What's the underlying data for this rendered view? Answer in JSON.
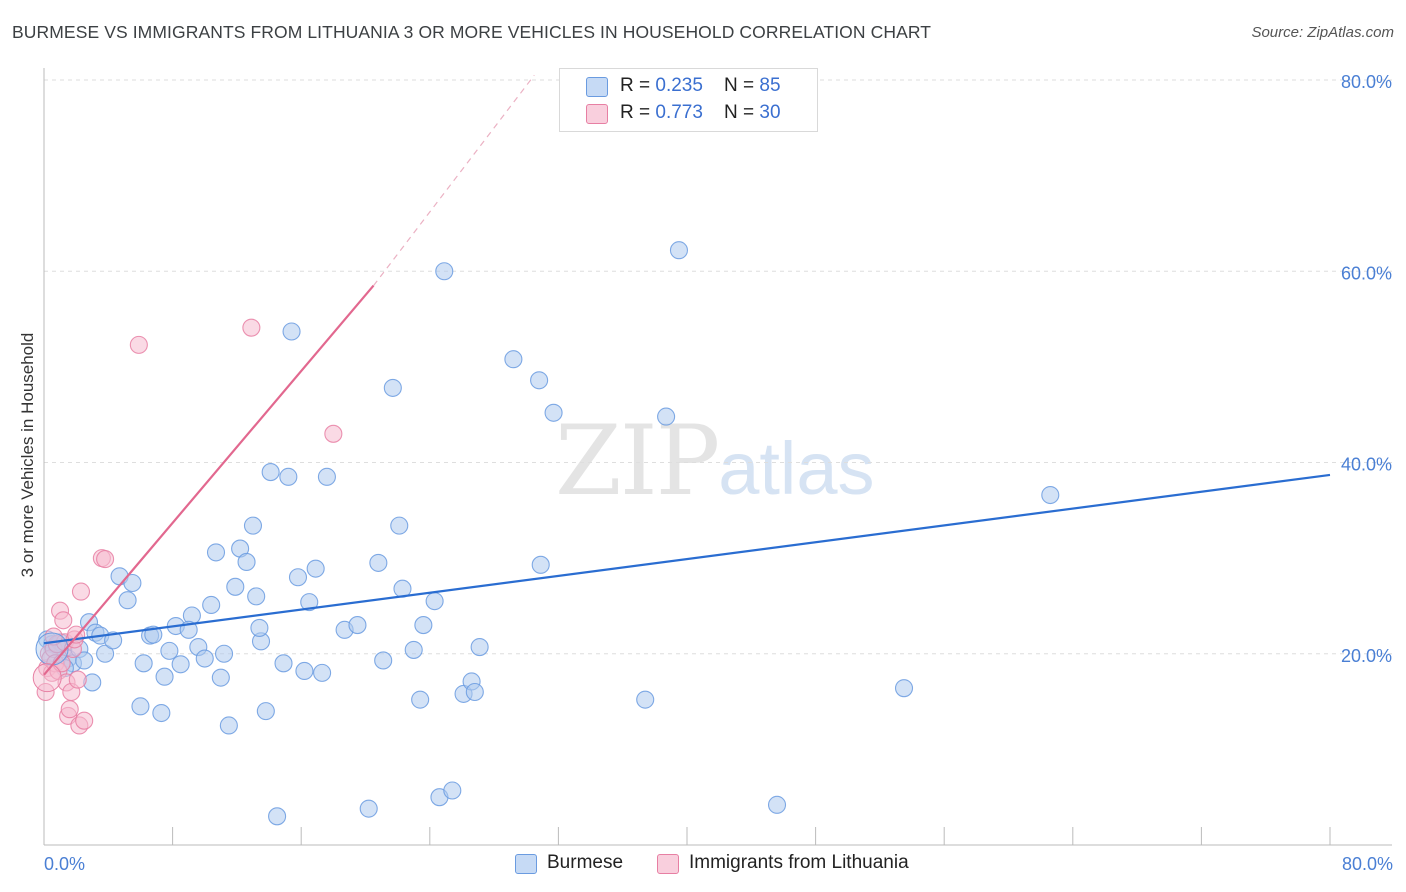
{
  "title": "BURMESE VS IMMIGRANTS FROM LITHUANIA 3 OR MORE VEHICLES IN HOUSEHOLD CORRELATION CHART",
  "source": "Source: ZipAtlas.com",
  "watermark": {
    "zip": "ZIP",
    "atlas": "atlas"
  },
  "legend": {
    "rows": [
      {
        "r_label": "R = ",
        "r_value": "0.235",
        "n_label": "N = ",
        "n_value": "85"
      },
      {
        "r_label": "R = ",
        "r_value": "0.773",
        "n_label": "N = ",
        "n_value": "30"
      }
    ]
  },
  "bottom_legend": [
    "Burmese",
    "Immigrants from Lithuania"
  ],
  "chart_data": {
    "type": "scatter",
    "title": "BURMESE VS IMMIGRANTS FROM LITHUANIA 3 OR MORE VEHICLES IN HOUSEHOLD CORRELATION CHART",
    "xlabel": "",
    "ylabel": "3 or more Vehicles in Household",
    "xlim": [
      0,
      80
    ],
    "ylim": [
      0,
      80
    ],
    "x_tick_labels": [
      "0.0%",
      "80.0%"
    ],
    "y_ticks": [
      20,
      40,
      60,
      80
    ],
    "y_tick_labels": [
      "20.0%",
      "40.0%",
      "60.0%",
      "80.0%"
    ],
    "grid": true,
    "series": [
      {
        "name": "Burmese",
        "color": "#6a9be0",
        "fill": "#aecbef",
        "R": 0.235,
        "N": 85,
        "trend": {
          "x": [
            0,
            80
          ],
          "y": [
            21.1,
            38.7
          ]
        },
        "points": [
          [
            0.2,
            21.5
          ],
          [
            0.5,
            21.0
          ],
          [
            0.8,
            20.8
          ],
          [
            1.0,
            21.2
          ],
          [
            1.2,
            20.5
          ],
          [
            1.5,
            19.5
          ],
          [
            1.8,
            19.0
          ],
          [
            2.2,
            20.5
          ],
          [
            2.5,
            19.3
          ],
          [
            2.8,
            23.3
          ],
          [
            3.2,
            22.2
          ],
          [
            3.5,
            21.9
          ],
          [
            3.8,
            20.0
          ],
          [
            4.3,
            21.4
          ],
          [
            4.7,
            28.1
          ],
          [
            5.2,
            25.6
          ],
          [
            5.5,
            27.4
          ],
          [
            6.2,
            19.0
          ],
          [
            6.6,
            21.9
          ],
          [
            6.8,
            22.0
          ],
          [
            7.3,
            13.8
          ],
          [
            7.5,
            17.6
          ],
          [
            7.8,
            20.3
          ],
          [
            8.2,
            22.9
          ],
          [
            8.5,
            18.9
          ],
          [
            9.2,
            24.0
          ],
          [
            9.6,
            20.7
          ],
          [
            10.0,
            19.5
          ],
          [
            10.4,
            25.1
          ],
          [
            10.7,
            30.6
          ],
          [
            11.2,
            20.0
          ],
          [
            11.5,
            12.5
          ],
          [
            11.9,
            27.0
          ],
          [
            12.2,
            31.0
          ],
          [
            12.6,
            29.6
          ],
          [
            13.0,
            33.4
          ],
          [
            13.2,
            26.0
          ],
          [
            13.5,
            21.3
          ],
          [
            13.8,
            14.0
          ],
          [
            14.1,
            39.0
          ],
          [
            14.5,
            3.0
          ],
          [
            14.9,
            19.0
          ],
          [
            15.2,
            38.5
          ],
          [
            15.4,
            53.7
          ],
          [
            15.8,
            28.0
          ],
          [
            16.2,
            18.2
          ],
          [
            16.5,
            25.4
          ],
          [
            16.9,
            28.9
          ],
          [
            17.3,
            18.0
          ],
          [
            17.6,
            38.5
          ],
          [
            18.7,
            22.5
          ],
          [
            19.5,
            23.0
          ],
          [
            20.2,
            3.8
          ],
          [
            20.8,
            29.5
          ],
          [
            21.1,
            19.3
          ],
          [
            21.7,
            47.8
          ],
          [
            22.1,
            33.4
          ],
          [
            22.3,
            26.8
          ],
          [
            23.0,
            20.4
          ],
          [
            23.4,
            15.2
          ],
          [
            23.6,
            23.0
          ],
          [
            24.3,
            25.5
          ],
          [
            24.6,
            5.0
          ],
          [
            24.9,
            60.0
          ],
          [
            25.4,
            5.7
          ],
          [
            26.1,
            15.8
          ],
          [
            26.6,
            17.1
          ],
          [
            26.8,
            16.0
          ],
          [
            27.1,
            20.7
          ],
          [
            29.2,
            50.8
          ],
          [
            30.8,
            48.6
          ],
          [
            30.9,
            29.3
          ],
          [
            31.7,
            45.2
          ],
          [
            37.4,
            15.2
          ],
          [
            38.7,
            44.8
          ],
          [
            39.5,
            62.2
          ],
          [
            45.6,
            4.2
          ],
          [
            53.5,
            16.4
          ],
          [
            62.6,
            36.6
          ],
          [
            1.3,
            18.5
          ],
          [
            3.0,
            17.0
          ],
          [
            6.0,
            14.5
          ],
          [
            9.0,
            22.5
          ],
          [
            11.0,
            17.5
          ],
          [
            13.4,
            22.7
          ]
        ]
      },
      {
        "name": "Immigrants from Lithuania",
        "color": "#e77fa3",
        "fill": "#f6bcd0",
        "R": 0.773,
        "N": 30,
        "trend": {
          "x": [
            0,
            20.5
          ],
          "y": [
            17.8,
            58.5
          ]
        },
        "trend_dashed": {
          "x": [
            20.5,
            30.5
          ],
          "y": [
            58.5,
            80.5
          ]
        },
        "points": [
          [
            0.1,
            16.0
          ],
          [
            0.2,
            18.5
          ],
          [
            0.3,
            20.0
          ],
          [
            0.4,
            19.5
          ],
          [
            0.5,
            18.0
          ],
          [
            0.6,
            20.5
          ],
          [
            0.7,
            19.0
          ],
          [
            0.8,
            21.0
          ],
          [
            0.9,
            18.2
          ],
          [
            1.0,
            24.5
          ],
          [
            1.1,
            19.0
          ],
          [
            1.2,
            23.5
          ],
          [
            1.3,
            21.2
          ],
          [
            1.4,
            17.0
          ],
          [
            1.5,
            13.5
          ],
          [
            1.6,
            14.2
          ],
          [
            1.7,
            16.0
          ],
          [
            1.8,
            20.5
          ],
          [
            1.9,
            21.5
          ],
          [
            2.0,
            22.0
          ],
          [
            2.1,
            17.3
          ],
          [
            2.2,
            12.5
          ],
          [
            2.3,
            26.5
          ],
          [
            2.5,
            13.0
          ],
          [
            3.6,
            30.0
          ],
          [
            3.8,
            29.9
          ],
          [
            5.9,
            52.3
          ],
          [
            12.9,
            54.1
          ],
          [
            18.0,
            43.0
          ],
          [
            0.6,
            21.8
          ]
        ]
      }
    ]
  }
}
